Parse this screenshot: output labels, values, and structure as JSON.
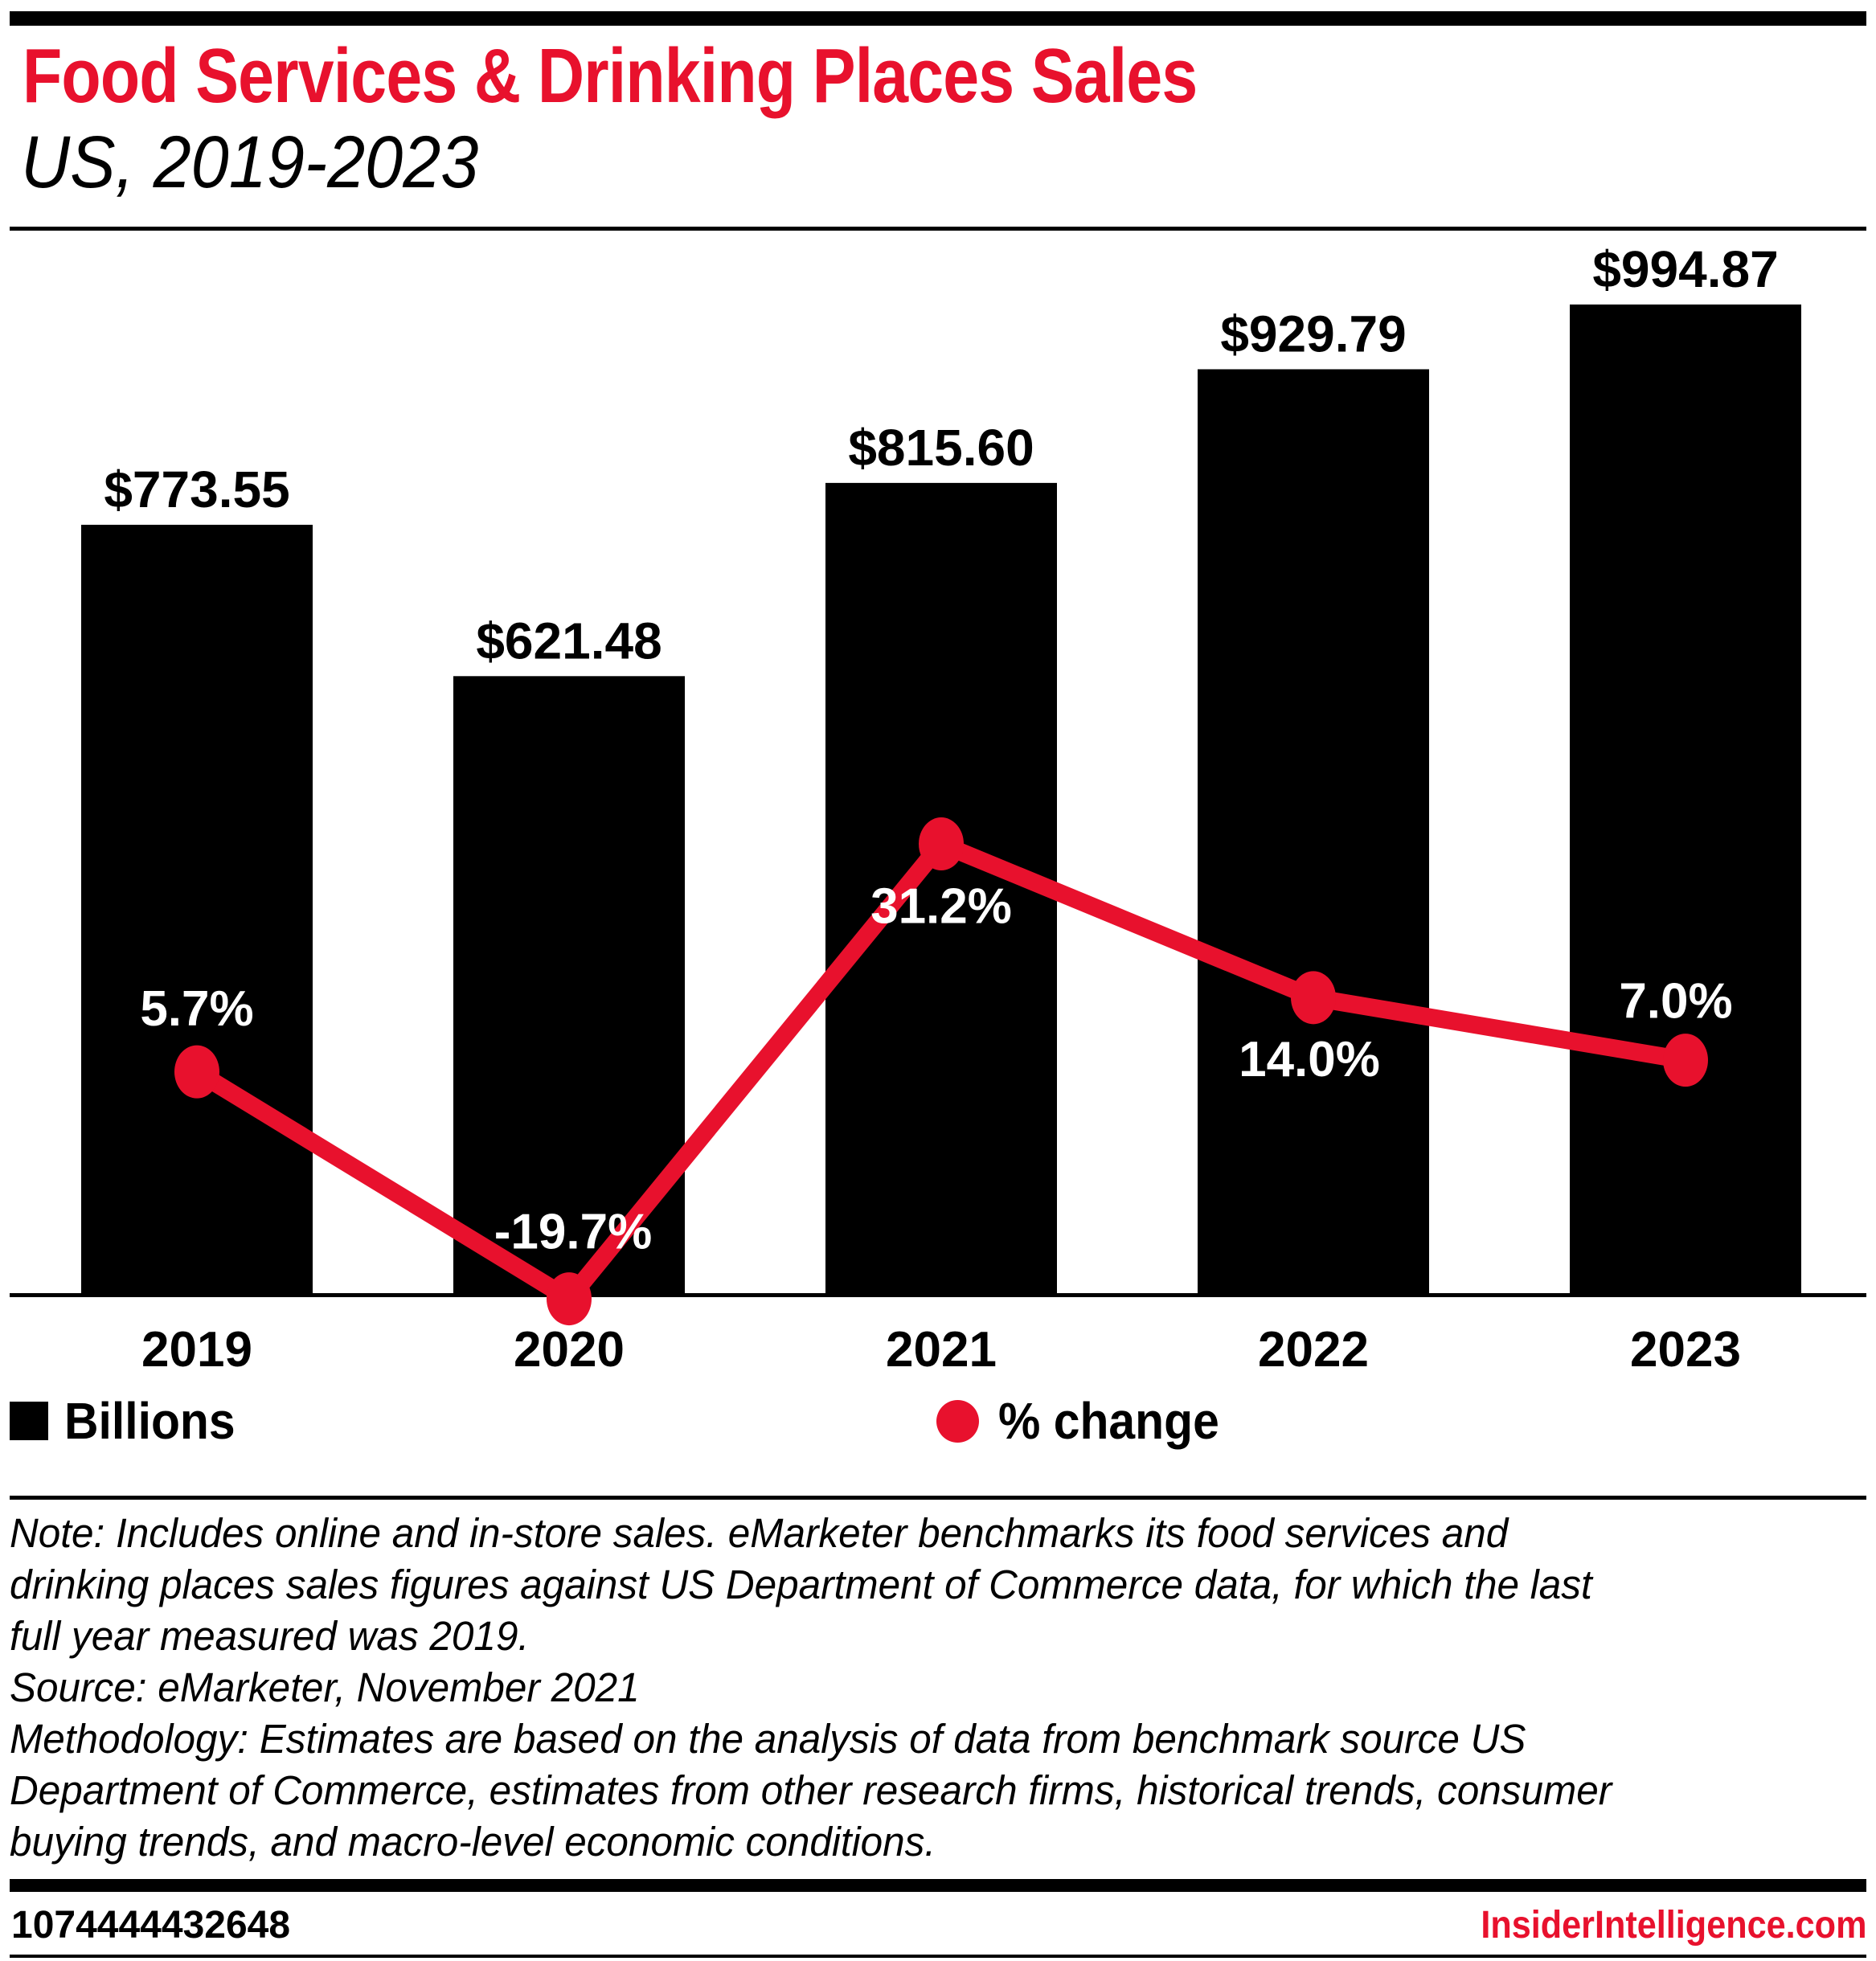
{
  "page": {
    "background": "#ffffff",
    "accent_red": "#e8112d",
    "bar_black": "#000000"
  },
  "header": {
    "title": "Food Services & Drinking Places Sales",
    "subtitle": "US, 2019-2023"
  },
  "chart_data": {
    "type": "bar+line",
    "title": "Food Services & Drinking Places Sales, US, 2019-2023",
    "categories": [
      "2019",
      "2020",
      "2021",
      "2022",
      "2023"
    ],
    "series": [
      {
        "name": "Billions",
        "type": "bar",
        "color": "#000000",
        "values": [
          773.55,
          621.48,
          815.6,
          929.79,
          994.87
        ],
        "labels": [
          "$773.55",
          "$621.48",
          "$815.60",
          "$929.79",
          "$994.87"
        ],
        "label_color": "#000000"
      },
      {
        "name": "% change",
        "type": "line",
        "color": "#e8112d",
        "values": [
          5.7,
          -19.7,
          31.2,
          14.0,
          7.0
        ],
        "labels": [
          "5.7%",
          "-19.7%",
          "31.2%",
          "14.0%",
          "7.0%"
        ],
        "label_color": "#ffffff"
      }
    ],
    "xlabel": "",
    "ylabel": "",
    "ylim_bar": [
      0,
      1075
    ],
    "grid": false,
    "legend_position": "bottom"
  },
  "notes": {
    "lines": [
      "Note: Includes online and in-store sales. eMarketer benchmarks its food services and",
      "drinking places sales figures against US Department of Commerce data, for which the last",
      "full year measured was 2019.",
      "Source: eMarketer, November 2021",
      "Methodology: Estimates are based on the analysis of data from benchmark source US",
      "Department of Commerce, estimates from other research firms, historical trends, consumer",
      "buying trends, and macro-level economic conditions."
    ]
  },
  "footer": {
    "chart_id": "1074444432648",
    "site": "InsiderIntelligence.com"
  }
}
